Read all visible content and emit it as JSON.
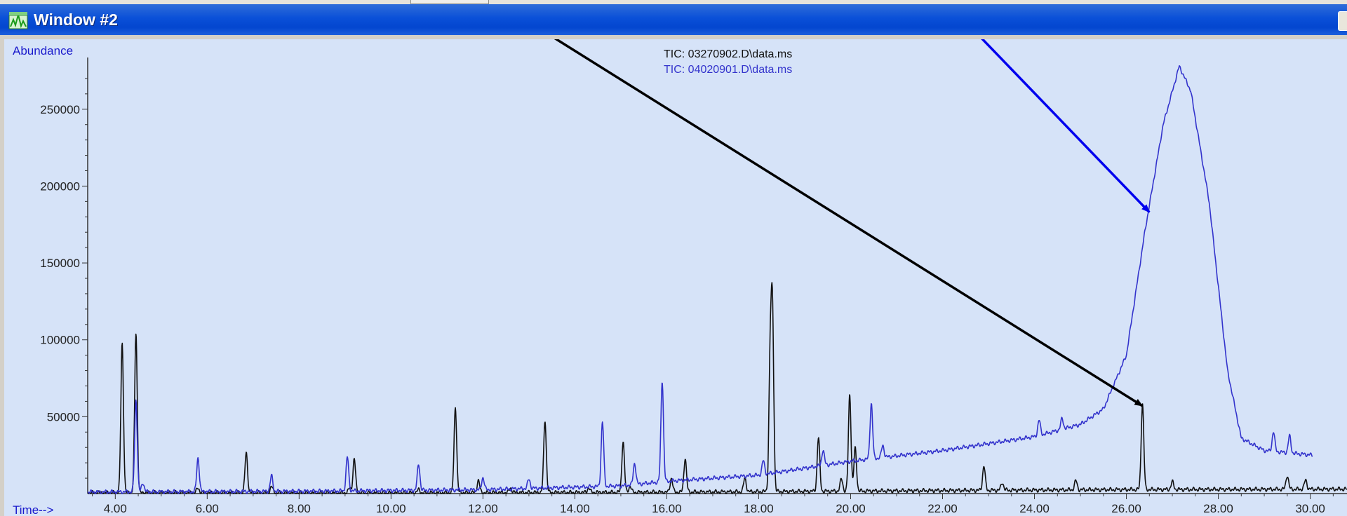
{
  "window": {
    "title": "Window #2",
    "icon": "chromatogram-icon"
  },
  "colors": {
    "title_bar": "#0a50d8",
    "plot_background": "#d6e3f8",
    "black_trace": "#111111",
    "blue_trace": "#3333cc",
    "blue_arrow": "#0000ee",
    "black_arrow": "#000000"
  },
  "chart_data": {
    "type": "line",
    "title": "",
    "ylabel": "Abundance",
    "xlabel": "Time-->",
    "xlim": [
      3.4,
      30.8
    ],
    "ylim": [
      0,
      280000
    ],
    "x_ticks": [
      "4.00",
      "6.00",
      "8.00",
      "10.00",
      "12.00",
      "14.00",
      "16.00",
      "18.00",
      "20.00",
      "22.00",
      "24.00",
      "26.00",
      "28.00",
      "30.00"
    ],
    "y_ticks": [
      "50000",
      "100000",
      "150000",
      "200000",
      "250000"
    ],
    "grid": false,
    "legend": "top-center",
    "series": [
      {
        "name": "TIC: 03270902.D\\data.ms",
        "color": "#111111",
        "baseline": [
          [
            3.4,
            600
          ],
          [
            10,
            500
          ],
          [
            16,
            900
          ],
          [
            22,
            2000
          ],
          [
            26,
            2600
          ],
          [
            30.8,
            2900
          ]
        ],
        "peaks": [
          {
            "t": 4.15,
            "h": 97000
          },
          {
            "t": 4.45,
            "h": 104000
          },
          {
            "t": 5.8,
            "h": 3000
          },
          {
            "t": 6.85,
            "h": 26000
          },
          {
            "t": 7.4,
            "h": 4000
          },
          {
            "t": 9.1,
            "h": 3000
          },
          {
            "t": 9.2,
            "h": 22000
          },
          {
            "t": 10.6,
            "h": 2000
          },
          {
            "t": 11.4,
            "h": 56000
          },
          {
            "t": 11.9,
            "h": 8000
          },
          {
            "t": 12.6,
            "h": 3000
          },
          {
            "t": 13.35,
            "h": 47000
          },
          {
            "t": 14.3,
            "h": 3000
          },
          {
            "t": 15.05,
            "h": 33000
          },
          {
            "t": 15.2,
            "h": 4000
          },
          {
            "t": 16.1,
            "h": 9000
          },
          {
            "t": 16.4,
            "h": 22000
          },
          {
            "t": 17.7,
            "h": 9000
          },
          {
            "t": 18.25,
            "h": 84000
          },
          {
            "t": 18.3,
            "h": 111000
          },
          {
            "t": 19.3,
            "h": 35000
          },
          {
            "t": 19.8,
            "h": 8000
          },
          {
            "t": 19.98,
            "h": 63000
          },
          {
            "t": 20.1,
            "h": 28000
          },
          {
            "t": 22.9,
            "h": 16000
          },
          {
            "t": 23.3,
            "h": 5000
          },
          {
            "t": 24.9,
            "h": 6000
          },
          {
            "t": 26.35,
            "h": 56000
          },
          {
            "t": 27.0,
            "h": 5000
          },
          {
            "t": 29.5,
            "h": 9000
          },
          {
            "t": 29.9,
            "h": 6000
          }
        ]
      },
      {
        "name": "TIC: 04020901.D\\data.ms",
        "color": "#3333cc",
        "x_end": 30.05,
        "baseline": [
          [
            3.4,
            1000
          ],
          [
            8,
            1500
          ],
          [
            12,
            2500
          ],
          [
            15,
            5000
          ],
          [
            16,
            8000
          ],
          [
            18,
            12000
          ],
          [
            20,
            21000
          ],
          [
            22,
            28000
          ],
          [
            24,
            37000
          ],
          [
            25,
            45000
          ],
          [
            25.5,
            55000
          ],
          [
            26,
            90000
          ],
          [
            26.4,
            170000
          ],
          [
            26.8,
            240000
          ],
          [
            27.15,
            278000
          ],
          [
            27.4,
            262000
          ],
          [
            27.8,
            190000
          ],
          [
            28.2,
            80000
          ],
          [
            28.5,
            36000
          ],
          [
            29,
            28000
          ],
          [
            30.05,
            25000
          ]
        ],
        "peaks": [
          {
            "t": 4.45,
            "h": 60000
          },
          {
            "t": 4.6,
            "h": 6000
          },
          {
            "t": 5.8,
            "h": 22000
          },
          {
            "t": 7.4,
            "h": 10000
          },
          {
            "t": 9.05,
            "h": 22000
          },
          {
            "t": 10.6,
            "h": 17000
          },
          {
            "t": 12.0,
            "h": 8000
          },
          {
            "t": 13.0,
            "h": 6000
          },
          {
            "t": 14.6,
            "h": 42000
          },
          {
            "t": 15.3,
            "h": 14000
          },
          {
            "t": 15.9,
            "h": 66000
          },
          {
            "t": 18.1,
            "h": 9000
          },
          {
            "t": 19.4,
            "h": 10000
          },
          {
            "t": 20.45,
            "h": 36000
          },
          {
            "t": 20.7,
            "h": 8000
          },
          {
            "t": 24.1,
            "h": 10000
          },
          {
            "t": 24.6,
            "h": 7000
          },
          {
            "t": 29.2,
            "h": 13000
          },
          {
            "t": 29.55,
            "h": 11000
          }
        ]
      }
    ],
    "annotations": [
      {
        "type": "arrow",
        "color": "#0000ee",
        "from": [
          20.7,
          340000
        ],
        "to": [
          26.5,
          183000
        ]
      },
      {
        "type": "arrow",
        "color": "#000000",
        "from": [
          10.0,
          340000
        ],
        "to": [
          26.35,
          57000
        ]
      }
    ]
  }
}
